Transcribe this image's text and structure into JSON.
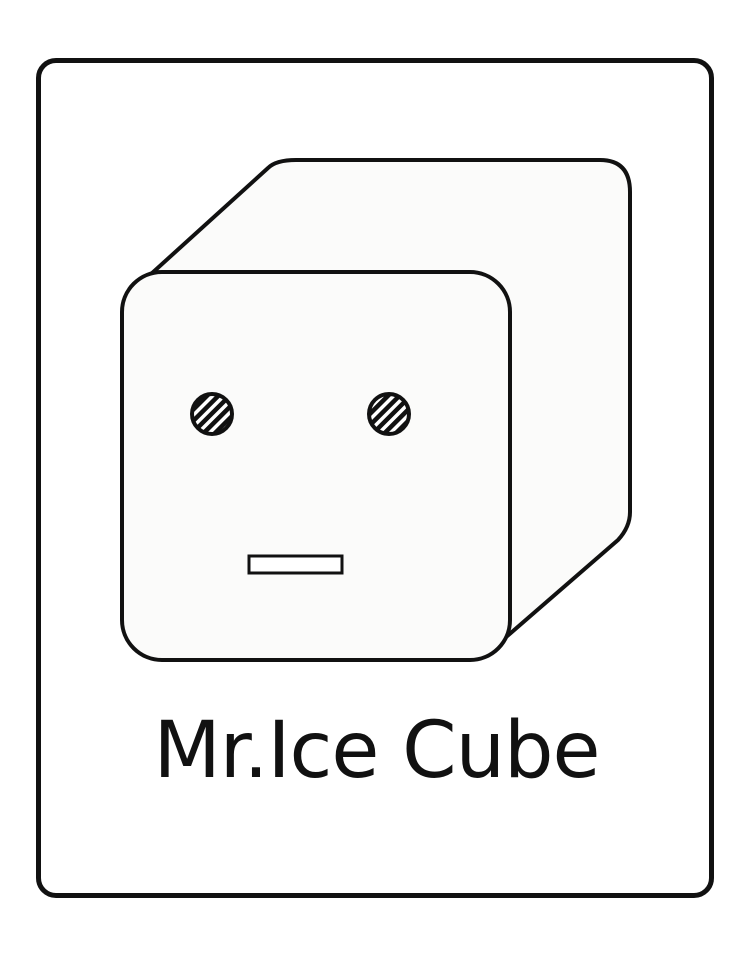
{
  "title": "Mr.Ice Cube",
  "colors": {
    "stroke": "#111111",
    "background": "#ffffff",
    "cube_fill": "#fbfbfa"
  },
  "icons": {
    "mascot": "ice-cube-face-icon"
  }
}
